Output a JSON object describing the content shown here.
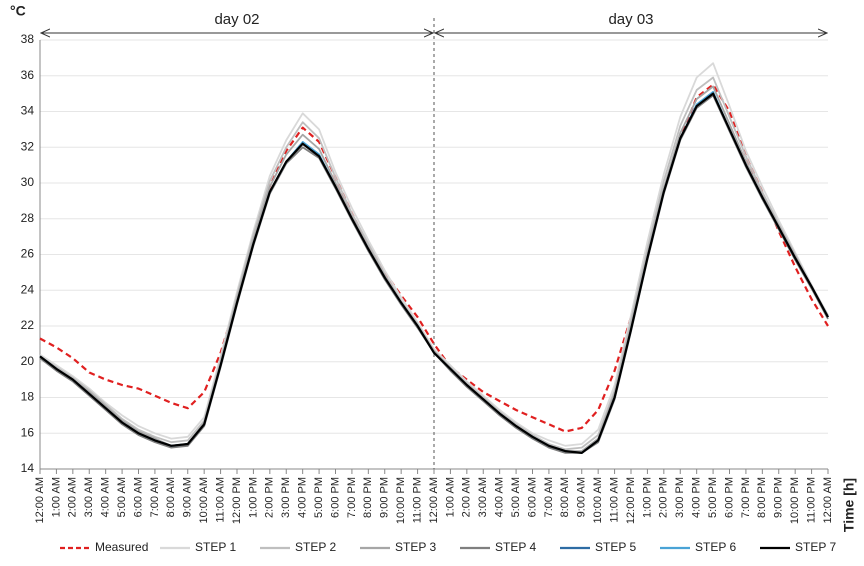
{
  "chart_data": {
    "type": "line",
    "y_label": "°C",
    "x_label": "Time [h]",
    "annotations": [
      "day 02",
      "day 03"
    ],
    "categories": [
      "12:00 AM",
      "1:00 AM",
      "2:00 AM",
      "3:00 AM",
      "4:00 AM",
      "5:00 AM",
      "6:00 AM",
      "7:00 AM",
      "8:00 AM",
      "9:00 AM",
      "10:00 AM",
      "11:00 AM",
      "12:00 PM",
      "1:00 PM",
      "2:00 PM",
      "3:00 PM",
      "4:00 PM",
      "5:00 PM",
      "6:00 PM",
      "7:00 PM",
      "8:00 PM",
      "9:00 PM",
      "10:00 PM",
      "11:00 PM",
      "12:00 AM",
      "1:00 AM",
      "2:00 AM",
      "3:00 AM",
      "4:00 AM",
      "5:00 AM",
      "6:00 AM",
      "7:00 AM",
      "8:00 AM",
      "9:00 AM",
      "10:00 AM",
      "11:00 AM",
      "12:00 PM",
      "1:00 PM",
      "2:00 PM",
      "3:00 PM",
      "4:00 PM",
      "5:00 PM",
      "6:00 PM",
      "7:00 PM",
      "8:00 PM",
      "9:00 PM",
      "10:00 PM",
      "11:00 PM",
      "12:00 AM"
    ],
    "ylim": [
      14,
      38
    ],
    "yticks": [
      14,
      16,
      18,
      20,
      22,
      24,
      26,
      28,
      30,
      32,
      34,
      36,
      38
    ],
    "grid": true,
    "series": [
      {
        "name": "Measured",
        "color": "#e02020",
        "dashed": true,
        "values": [
          21.3,
          20.8,
          20.2,
          19.4,
          19.0,
          18.7,
          18.5,
          18.1,
          17.7,
          17.4,
          18.3,
          20.5,
          23.5,
          26.8,
          29.8,
          31.8,
          33.1,
          32.3,
          30.3,
          28.3,
          26.5,
          25.0,
          23.7,
          22.5,
          21.0,
          19.7,
          19.0,
          18.3,
          17.8,
          17.3,
          16.9,
          16.5,
          16.1,
          16.3,
          17.3,
          19.5,
          22.5,
          26.0,
          29.5,
          32.5,
          34.8,
          35.5,
          34.0,
          31.5,
          29.5,
          27.3,
          25.3,
          23.5,
          22.0
        ]
      },
      {
        "name": "STEP 1",
        "color": "#d9d9d9",
        "values": [
          20.4,
          19.8,
          19.2,
          18.5,
          17.7,
          17.0,
          16.4,
          16.0,
          15.7,
          15.8,
          16.9,
          20.3,
          23.9,
          27.3,
          30.4,
          32.4,
          33.9,
          33.0,
          30.6,
          28.6,
          26.8,
          25.1,
          23.6,
          22.2,
          20.7,
          19.8,
          18.9,
          18.1,
          17.3,
          16.6,
          16.0,
          15.6,
          15.3,
          15.4,
          16.2,
          18.7,
          22.6,
          26.7,
          30.5,
          33.7,
          35.9,
          36.7,
          34.3,
          31.8,
          29.8,
          27.9,
          26.1,
          24.3,
          22.6
        ]
      },
      {
        "name": "STEP 2",
        "color": "#bfbfbf",
        "values": [
          20.3,
          19.7,
          19.1,
          18.4,
          17.6,
          16.8,
          16.2,
          15.8,
          15.5,
          15.6,
          16.7,
          20.1,
          23.7,
          27.1,
          30.1,
          32.0,
          33.4,
          32.5,
          30.3,
          28.3,
          26.6,
          24.9,
          23.4,
          22.1,
          20.6,
          19.7,
          18.8,
          18.0,
          17.2,
          16.5,
          15.9,
          15.4,
          15.1,
          15.2,
          15.9,
          18.4,
          22.3,
          26.3,
          30.1,
          33.2,
          35.2,
          35.9,
          33.7,
          31.5,
          29.5,
          27.7,
          26.0,
          24.2,
          22.6
        ]
      },
      {
        "name": "STEP 3",
        "color": "#a6a6a6",
        "values": [
          20.2,
          19.6,
          19.0,
          18.3,
          17.5,
          16.7,
          16.1,
          15.7,
          15.3,
          15.4,
          16.6,
          19.9,
          23.5,
          26.8,
          29.8,
          31.6,
          32.7,
          31.9,
          30.0,
          28.1,
          26.4,
          24.8,
          23.3,
          22.0,
          20.6,
          19.6,
          18.7,
          17.9,
          17.1,
          16.4,
          15.8,
          15.3,
          15.0,
          15.0,
          15.7,
          18.2,
          22.0,
          26.0,
          29.7,
          32.8,
          34.7,
          35.4,
          33.3,
          31.2,
          29.3,
          27.6,
          25.9,
          24.2,
          22.5
        ]
      },
      {
        "name": "STEP 4",
        "color": "#7f7f7f",
        "values": [
          20.2,
          19.5,
          18.9,
          18.1,
          17.3,
          16.5,
          15.9,
          15.5,
          15.2,
          15.3,
          16.4,
          19.7,
          23.2,
          26.5,
          29.4,
          31.1,
          32.0,
          31.4,
          29.7,
          27.9,
          26.2,
          24.6,
          23.2,
          21.9,
          20.5,
          19.5,
          18.6,
          17.8,
          17.0,
          16.3,
          15.7,
          15.2,
          14.9,
          14.9,
          15.5,
          17.9,
          21.7,
          25.7,
          29.4,
          32.4,
          34.2,
          34.9,
          32.9,
          30.9,
          29.1,
          27.4,
          25.7,
          24.1,
          22.4
        ]
      },
      {
        "name": "STEP 5",
        "color": "#2e6ca4",
        "values": [
          20.3,
          19.6,
          19.0,
          18.2,
          17.4,
          16.6,
          16.0,
          15.6,
          15.3,
          15.4,
          16.5,
          19.8,
          23.3,
          26.6,
          29.5,
          31.2,
          32.2,
          31.5,
          29.8,
          28.0,
          26.3,
          24.7,
          23.3,
          22.0,
          20.5,
          19.6,
          18.7,
          17.9,
          17.1,
          16.4,
          15.8,
          15.3,
          15.0,
          14.9,
          15.6,
          18.0,
          21.8,
          25.8,
          29.5,
          32.5,
          34.3,
          35.0,
          33.0,
          31.0,
          29.2,
          27.5,
          25.8,
          24.2,
          22.5
        ]
      },
      {
        "name": "STEP 6",
        "color": "#4aa3d6",
        "values": [
          20.3,
          19.6,
          19.0,
          18.2,
          17.4,
          16.6,
          16.0,
          15.6,
          15.3,
          15.4,
          16.5,
          19.8,
          23.3,
          26.6,
          29.5,
          31.2,
          32.3,
          31.6,
          29.8,
          28.0,
          26.3,
          24.7,
          23.3,
          22.0,
          20.5,
          19.6,
          18.7,
          17.9,
          17.1,
          16.4,
          15.8,
          15.3,
          15.0,
          14.9,
          15.6,
          18.0,
          21.8,
          25.8,
          29.5,
          32.5,
          34.4,
          35.1,
          33.0,
          31.0,
          29.2,
          27.5,
          25.8,
          24.2,
          22.5
        ]
      },
      {
        "name": "STEP 7",
        "color": "#000000",
        "values": [
          20.3,
          19.6,
          19.0,
          18.2,
          17.4,
          16.6,
          16.0,
          15.6,
          15.3,
          15.4,
          16.5,
          19.8,
          23.3,
          26.6,
          29.5,
          31.2,
          32.2,
          31.5,
          29.8,
          28.0,
          26.3,
          24.7,
          23.3,
          22.0,
          20.5,
          19.6,
          18.7,
          17.9,
          17.1,
          16.4,
          15.8,
          15.3,
          15.0,
          14.9,
          15.6,
          18.0,
          21.8,
          25.8,
          29.5,
          32.5,
          34.3,
          35.0,
          33.0,
          31.0,
          29.2,
          27.5,
          25.8,
          24.2,
          22.5
        ]
      }
    ]
  }
}
